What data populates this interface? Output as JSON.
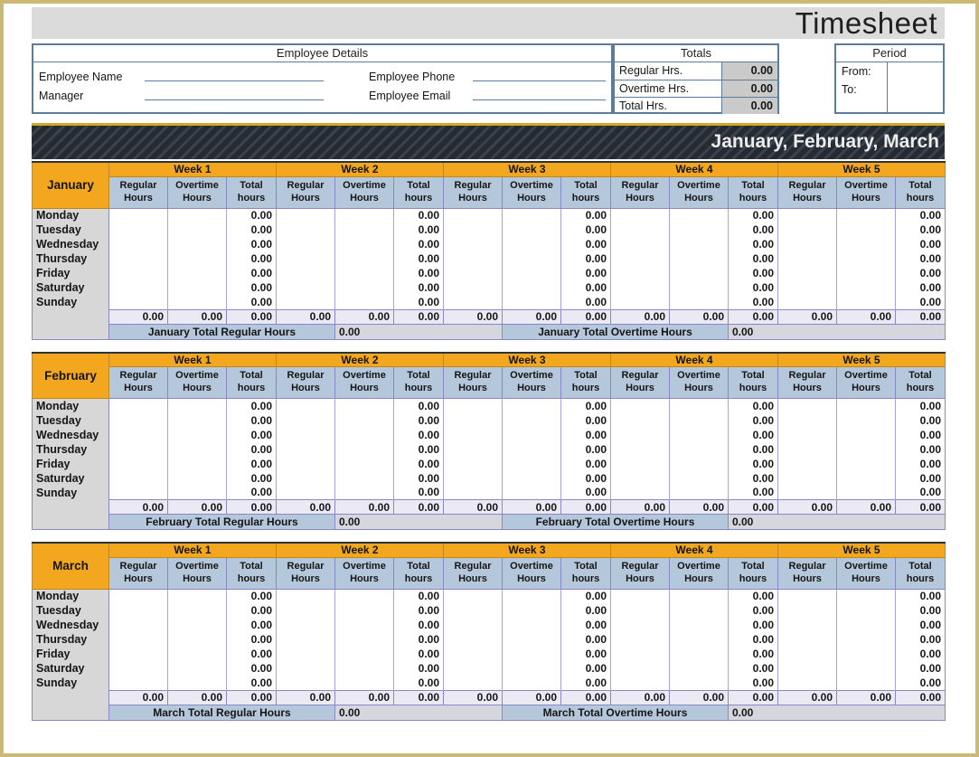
{
  "title": "Timesheet",
  "employee_details": {
    "header": "Employee Details",
    "left_fields": [
      "Employee Name",
      "Manager"
    ],
    "right_fields": [
      "Employee Phone",
      "Employee Email"
    ]
  },
  "totals": {
    "header": "Totals",
    "rows": [
      {
        "label": "Regular Hrs.",
        "value": "0.00"
      },
      {
        "label": "Overtime Hrs.",
        "value": "0.00"
      },
      {
        "label": "Total Hrs.",
        "value": "0.00"
      }
    ]
  },
  "period": {
    "header": "Period",
    "fields": [
      "From:",
      "To:"
    ]
  },
  "banner": {
    "text": "January, February, March"
  },
  "table": {
    "weeks": [
      "Week 1",
      "Week 2",
      "Week 3",
      "Week 4",
      "Week 5"
    ],
    "sub_headers": [
      "Regular Hours",
      "Overtime Hours",
      "Total hours"
    ],
    "days": [
      "Monday",
      "Tuesday",
      "Wednesday",
      "Thursday",
      "Friday",
      "Saturday",
      "Sunday"
    ],
    "cell_value": "0.00"
  },
  "months": [
    {
      "name": "January",
      "total_regular_label": "January Total Regular Hours",
      "total_regular_value": "0.00",
      "total_overtime_label": "January Total Overtime Hours",
      "total_overtime_value": "0.00"
    },
    {
      "name": "February",
      "total_regular_label": "February Total Regular Hours",
      "total_regular_value": "0.00",
      "total_overtime_label": "February Total Overtime Hours",
      "total_overtime_value": "0.00"
    },
    {
      "name": "March",
      "total_regular_label": "March Total Regular Hours",
      "total_regular_value": "0.00",
      "total_overtime_label": "March Total Overtime Hours",
      "total_overtime_value": "0.00"
    }
  ],
  "colors": {
    "frame": "#CDB976",
    "titlebar_bg": "#DBDBDB",
    "box_border": "#5B7D99",
    "value_cell_bg": "#CACACA",
    "banner_bg": "#252B32",
    "banner_stripe": "#3A424C",
    "gold_line": "#D8A722",
    "accent": "#F2A71E",
    "accent_border": "#C1871A",
    "header_blue": "#B5C7DA",
    "grid_border": "#8888C4",
    "light_border": "#A6A6D6",
    "day_col_bg": "#D7D7D7",
    "sum_row_bg": "#EBE9F4",
    "footer_value_bg": "#D6D6DE"
  }
}
